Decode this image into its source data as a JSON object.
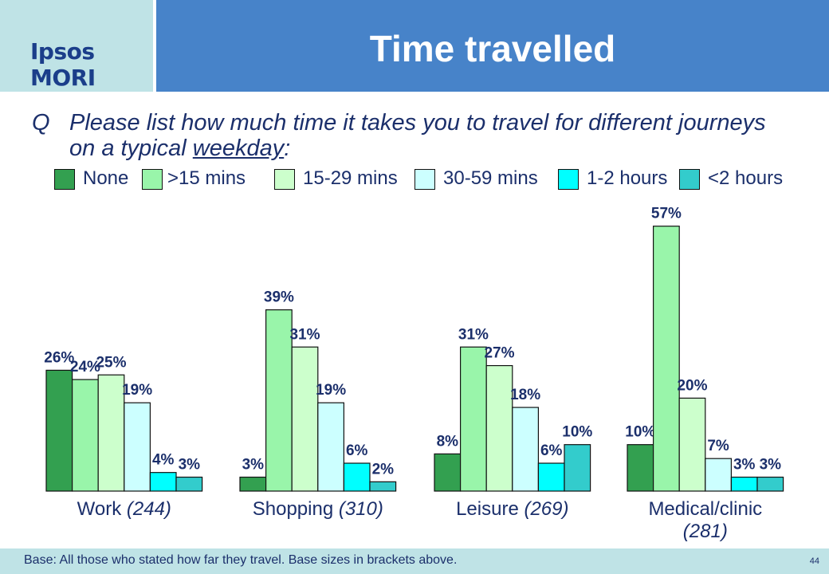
{
  "header": {
    "logo": "Ipsos MORI",
    "title": "Time travelled"
  },
  "question": {
    "marker": "Q",
    "text_before": "Please list how much time it takes you to travel for different journeys on a typical ",
    "text_emph": "weekday",
    "text_after": ":"
  },
  "footer": {
    "note": "Base: All those who stated how far they travel.   Base sizes in brackets above.",
    "page_number": "44"
  },
  "colors": {
    "header_blue": "#4783c9",
    "header_light": "#bfe3e6",
    "text_navy": "#1b2f6b"
  },
  "chart_data": {
    "type": "bar",
    "ylim": [
      0,
      60
    ],
    "legend_position": "top",
    "series": [
      {
        "name": "None",
        "color": "#33a050",
        "values": [
          26,
          3,
          8,
          10
        ]
      },
      {
        "name": ">15 mins",
        "color": "#99f5aa",
        "values": [
          24,
          39,
          31,
          57
        ]
      },
      {
        "name": "15-29 mins",
        "color": "#ccffcc",
        "values": [
          25,
          31,
          27,
          20
        ]
      },
      {
        "name": "30-59 mins",
        "color": "#ccffff",
        "values": [
          19,
          19,
          18,
          7
        ]
      },
      {
        "name": "1-2 hours",
        "color": "#00ffff",
        "values": [
          4,
          6,
          6,
          3
        ]
      },
      {
        "name": "<2 hours",
        "color": "#33cccc",
        "values": [
          3,
          2,
          10,
          3
        ]
      }
    ],
    "categories": [
      {
        "name": "Work",
        "base": "(244)"
      },
      {
        "name": "Shopping",
        "base": "(310)"
      },
      {
        "name": "Leisure",
        "base": "(269)"
      },
      {
        "name": "Medical/clinic",
        "base": "(281)"
      }
    ],
    "value_suffix": "%"
  }
}
